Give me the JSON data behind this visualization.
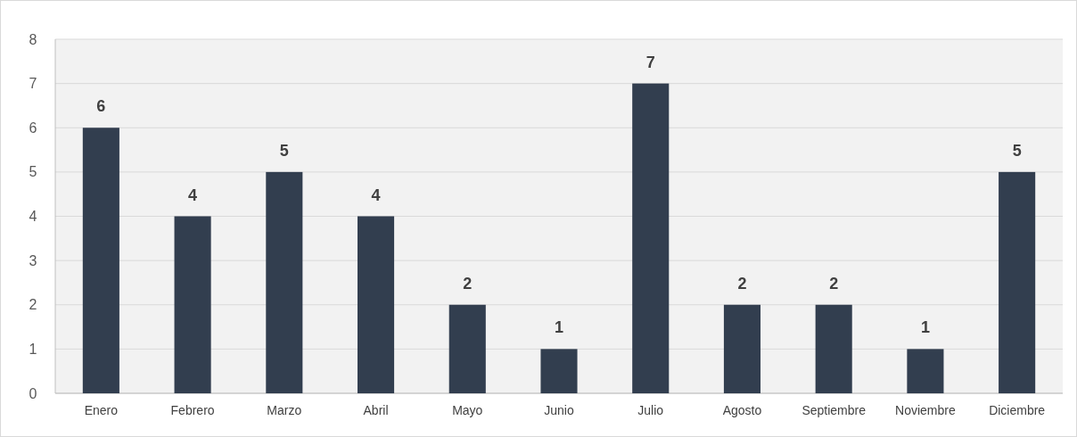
{
  "chart_data": {
    "type": "bar",
    "categories": [
      "Enero",
      "Febrero",
      "Marzo",
      "Abril",
      "Mayo",
      "Junio",
      "Julio",
      "Agosto",
      "Septiembre",
      "Noviembre",
      "Diciembre"
    ],
    "values": [
      6,
      4,
      5,
      4,
      2,
      1,
      7,
      2,
      2,
      1,
      5
    ],
    "color": "#323e4f",
    "ylim": [
      0,
      8
    ],
    "yticks": [
      0,
      1,
      2,
      3,
      4,
      5,
      6,
      7,
      8
    ],
    "grid": "y",
    "data_labels": true
  }
}
